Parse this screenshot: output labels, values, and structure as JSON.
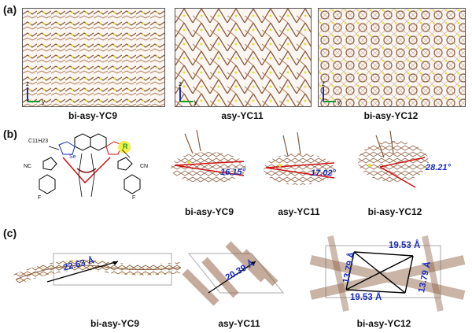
{
  "panels": {
    "a": {
      "letter": "(a)",
      "captions": [
        "bi-asy-YC9",
        "asy-YC11",
        "bi-asy-YC12"
      ],
      "axes": {
        "z": "z",
        "y": "y"
      }
    },
    "b": {
      "letter": "(b)",
      "structure_labels": {
        "alkyl": "C11H23",
        "se": "Se",
        "r": "R",
        "cn1": "NC",
        "cn2": "CN",
        "f": "F"
      },
      "captions": [
        "bi-asy-YC9",
        "asy-YC11",
        "bi-asy-YC12"
      ],
      "angles": [
        "16.15°",
        "17.02°",
        "28.21°"
      ]
    },
    "c": {
      "letter": "(c)",
      "captions": [
        "bi-asy-YC9",
        "asy-YC11",
        "bi-asy-YC12"
      ],
      "distances": {
        "yc9": "22.63 Å",
        "yc11": "20.39 Å",
        "yc12_top": "19.53 Å",
        "yc12_bottom": "19.53 Å",
        "yc12_left": "13.79 Å",
        "yc12_right": "13.79 Å"
      }
    }
  },
  "colors": {
    "angle_text": "#1a2dbf",
    "angle_lines": "#d01010",
    "molecule_brown": "#8a5a3c",
    "sulfur_yellow": "#e6e030",
    "highlight_yellow": "#f3f04a"
  }
}
